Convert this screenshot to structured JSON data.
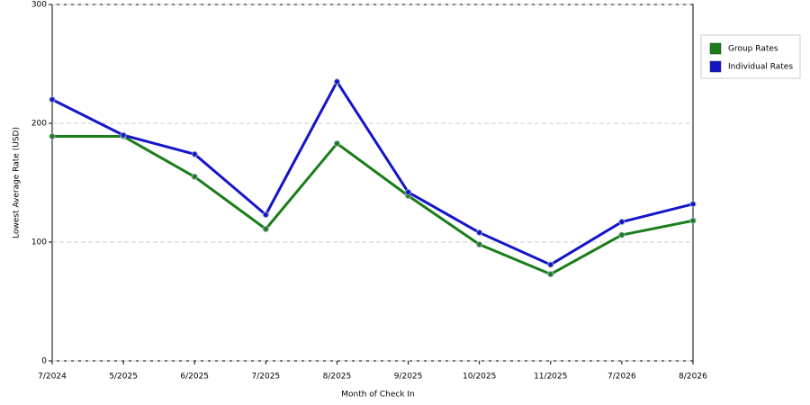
{
  "chart_data": {
    "type": "line",
    "x_label": "Month of Check In",
    "y_label": "Lowest Average Rate (USD)",
    "categories": [
      "7/2024",
      "5/2025",
      "6/2025",
      "7/2025",
      "8/2025",
      "9/2025",
      "10/2025",
      "11/2025",
      "7/2026",
      "8/2026"
    ],
    "series": [
      {
        "name": "Group Rates",
        "color": "#1a7d1a",
        "values": [
          189,
          189,
          155,
          111,
          183,
          139,
          98,
          73,
          106,
          118
        ]
      },
      {
        "name": "Individual Rates",
        "color": "#1414c8",
        "values": [
          220,
          190,
          174,
          123,
          235,
          142,
          108,
          81,
          117,
          132
        ]
      }
    ],
    "ylim": [
      0,
      300
    ],
    "yticks": [
      0,
      100,
      200,
      300
    ],
    "grid": true,
    "legend": "right"
  }
}
